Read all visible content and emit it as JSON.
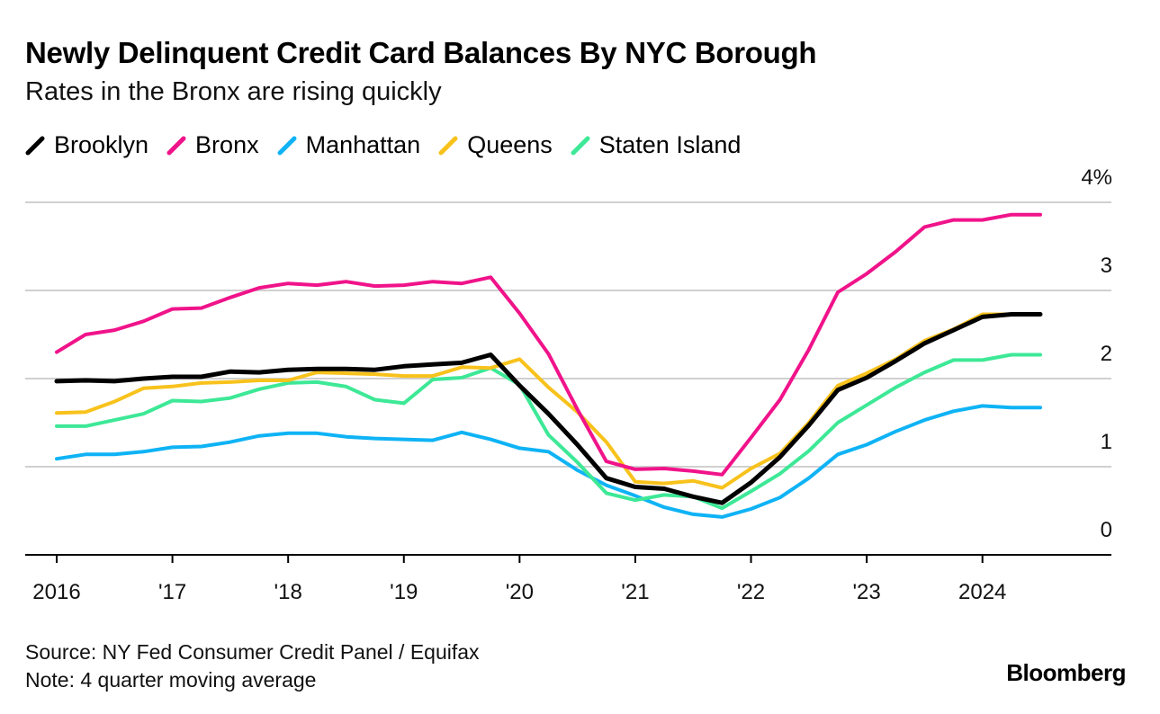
{
  "header": {
    "title": "Newly Delinquent Credit Card Balances By NYC Borough",
    "subtitle": "Rates in the Bronx are rising quickly"
  },
  "footer": {
    "source": "Source: NY Fed Consumer Credit Panel / Equifax",
    "note": "Note: 4 quarter moving average",
    "brand": "Bloomberg"
  },
  "chart_data": {
    "type": "line",
    "title": "Newly Delinquent Credit Card Balances By NYC Borough",
    "subtitle": "Rates in the Bronx are rising quickly",
    "xlabel": "",
    "ylabel": "",
    "ylim": [
      0,
      4
    ],
    "y_ticks": [
      {
        "value": 4,
        "label": "4%"
      },
      {
        "value": 3,
        "label": "3"
      },
      {
        "value": 2,
        "label": "2"
      },
      {
        "value": 1,
        "label": "1"
      },
      {
        "value": 0,
        "label": "0"
      }
    ],
    "x_ticks": [
      {
        "value": 2016,
        "label": "2016"
      },
      {
        "value": 2017,
        "label": "'17"
      },
      {
        "value": 2018,
        "label": "'18"
      },
      {
        "value": 2019,
        "label": "'19"
      },
      {
        "value": 2020,
        "label": "'20"
      },
      {
        "value": 2021,
        "label": "'21"
      },
      {
        "value": 2022,
        "label": "'22"
      },
      {
        "value": 2023,
        "label": "'23"
      },
      {
        "value": 2024,
        "label": "2024"
      }
    ],
    "xlim": [
      2015.75,
      2024.75
    ],
    "grid": true,
    "legend_position": "top-left",
    "x": [
      2016.0,
      2016.25,
      2016.5,
      2016.75,
      2017.0,
      2017.25,
      2017.5,
      2017.75,
      2018.0,
      2018.25,
      2018.5,
      2018.75,
      2019.0,
      2019.25,
      2019.5,
      2019.75,
      2020.0,
      2020.25,
      2020.5,
      2020.75,
      2021.0,
      2021.25,
      2021.5,
      2021.75,
      2022.0,
      2022.25,
      2022.5,
      2022.75,
      2023.0,
      2023.25,
      2023.5,
      2023.75,
      2024.0,
      2024.25,
      2024.5
    ],
    "series": [
      {
        "name": "Brooklyn",
        "color": "#000000",
        "values": [
          1.97,
          1.98,
          1.97,
          2.0,
          2.02,
          2.02,
          2.08,
          2.07,
          2.1,
          2.11,
          2.11,
          2.1,
          2.14,
          2.16,
          2.18,
          2.27,
          1.92,
          1.6,
          1.25,
          0.87,
          0.77,
          0.75,
          0.66,
          0.59,
          0.82,
          1.11,
          1.47,
          1.87,
          2.01,
          2.2,
          2.4,
          2.55,
          2.7,
          2.73,
          2.73
        ]
      },
      {
        "name": "Bronx",
        "color": "#f0138a",
        "values": [
          2.3,
          2.5,
          2.55,
          2.65,
          2.79,
          2.8,
          2.92,
          3.03,
          3.08,
          3.06,
          3.1,
          3.05,
          3.06,
          3.1,
          3.08,
          3.15,
          2.74,
          2.28,
          1.65,
          1.06,
          0.97,
          0.98,
          0.95,
          0.91,
          1.33,
          1.76,
          2.33,
          2.98,
          3.19,
          3.44,
          3.72,
          3.8,
          3.8,
          3.86,
          3.86
        ]
      },
      {
        "name": "Manhattan",
        "color": "#0fb3f5",
        "values": [
          1.09,
          1.14,
          1.14,
          1.17,
          1.22,
          1.23,
          1.28,
          1.35,
          1.38,
          1.38,
          1.34,
          1.32,
          1.31,
          1.3,
          1.39,
          1.31,
          1.21,
          1.17,
          0.96,
          0.79,
          0.67,
          0.54,
          0.46,
          0.43,
          0.52,
          0.65,
          0.87,
          1.14,
          1.25,
          1.4,
          1.53,
          1.63,
          1.69,
          1.67,
          1.67
        ]
      },
      {
        "name": "Queens",
        "color": "#f8c21c",
        "values": [
          1.61,
          1.62,
          1.74,
          1.89,
          1.91,
          1.95,
          1.96,
          1.98,
          1.98,
          2.07,
          2.06,
          2.05,
          2.03,
          2.03,
          2.13,
          2.12,
          2.22,
          1.9,
          1.62,
          1.28,
          0.83,
          0.81,
          0.84,
          0.76,
          0.98,
          1.15,
          1.5,
          1.92,
          2.06,
          2.22,
          2.43,
          2.56,
          2.73,
          2.73,
          2.73
        ]
      },
      {
        "name": "Staten Island",
        "color": "#3de896",
        "values": [
          1.46,
          1.46,
          1.53,
          1.6,
          1.75,
          1.74,
          1.78,
          1.88,
          1.95,
          1.96,
          1.91,
          1.76,
          1.72,
          1.99,
          2.01,
          2.12,
          1.93,
          1.36,
          1.05,
          0.7,
          0.62,
          0.68,
          0.66,
          0.53,
          0.72,
          0.92,
          1.18,
          1.5,
          1.7,
          1.9,
          2.07,
          2.21,
          2.21,
          2.27,
          2.27
        ]
      }
    ]
  }
}
